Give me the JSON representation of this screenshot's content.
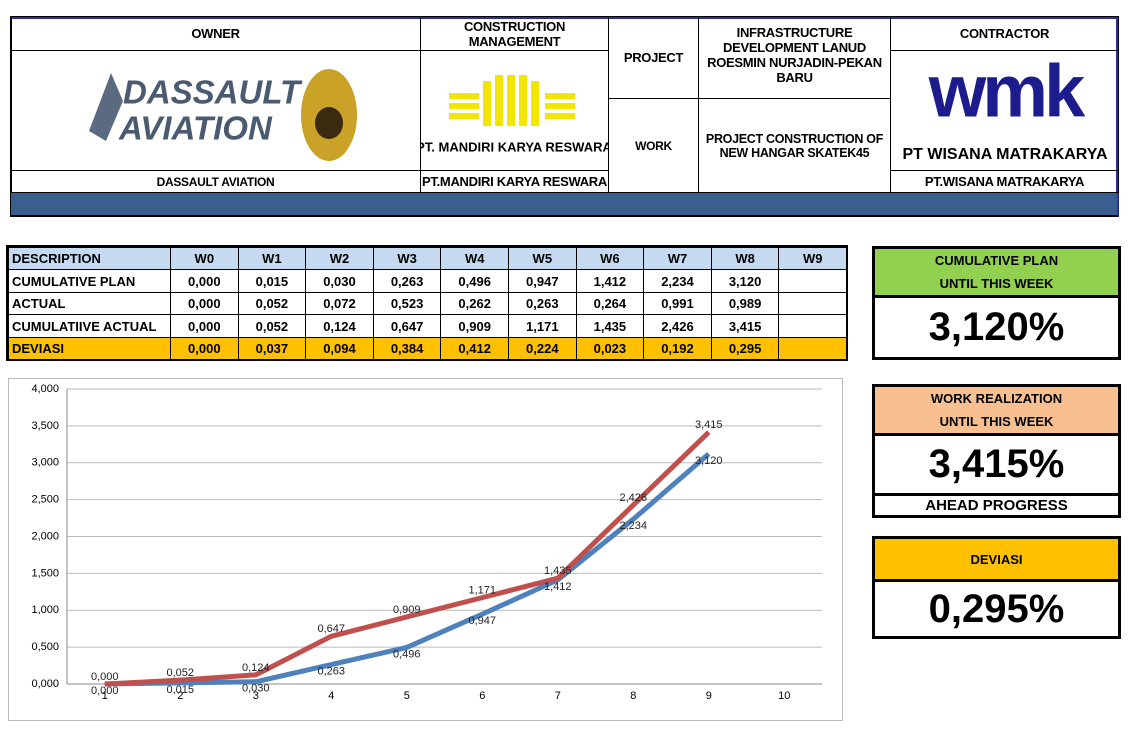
{
  "header": {
    "owner_label": "OWNER",
    "owner_logo": [
      "DASSAULT",
      "AVIATION"
    ],
    "owner_name": "DASSAULT AVIATION",
    "cm_label": "CONSTRUCTION MANAGEMENT",
    "cm_logo": "PT. MANDIRI KARYA RESWARA",
    "cm_name": "PT.MANDIRI KARYA RESWARA",
    "project_label": "PROJECT",
    "project": "INFRASTRUCTURE DEVELOPMENT LANUD ROESMIN NURJADIN-PEKAN BARU",
    "work_label": "WORK",
    "work": "PROJECT CONSTRUCTION OF NEW HANGAR SKATEK45",
    "contractor_label": "CONTRACTOR",
    "contractor_logo": [
      "wmk",
      "PT WISANA MATRAKARYA"
    ],
    "contractor_name": "PT.WISANA MATRAKARYA"
  },
  "table": {
    "columns": [
      "DESCRIPTION",
      "W0",
      "W1",
      "W2",
      "W3",
      "W4",
      "W5",
      "W6",
      "W7",
      "W8",
      "W9"
    ],
    "rows": [
      [
        "CUMULATIVE PLAN",
        "0,000",
        "0,015",
        "0,030",
        "0,263",
        "0,496",
        "0,947",
        "1,412",
        "2,234",
        "3,120"
      ],
      [
        "ACTUAL",
        "0,000",
        "0,052",
        "0,072",
        "0,523",
        "0,262",
        "0,263",
        "0,264",
        "0,991",
        "0,989"
      ],
      [
        "CUMULATIIVE ACTUAL",
        "0,000",
        "0,052",
        "0,124",
        "0,647",
        "0,909",
        "1,171",
        "1,435",
        "2,426",
        "3,415"
      ],
      [
        "DEVIASI",
        "0,000",
        "0,037",
        "0,094",
        "0,384",
        "0,412",
        "0,224",
        "0,023",
        "0,192",
        "0,295"
      ]
    ]
  },
  "boxes": {
    "plan": {
      "title": [
        "CUMULATIVE PLAN",
        "UNTIL THIS WEEK"
      ],
      "value": "3,120%"
    },
    "work": {
      "title": [
        "WORK REALIZATION",
        "UNTIL THIS WEEK"
      ],
      "value": "3,415%",
      "status": "AHEAD PROGRESS"
    },
    "deviasi": {
      "title": [
        "DEVIASI"
      ],
      "value": "0,295%"
    }
  },
  "chart_data": {
    "type": "line",
    "categories": [
      "1",
      "2",
      "3",
      "4",
      "5",
      "6",
      "7",
      "8",
      "9",
      "10"
    ],
    "series": [
      {
        "color": "#4f81bd",
        "values": [
          0,
          0.015,
          0.03,
          0.263,
          0.496,
          0.947,
          1.412,
          2.234,
          3.12,
          null
        ],
        "value_labels": [
          "0,000",
          "0,015",
          "0,030",
          "0,263",
          "0,496",
          "0,947",
          "1,412",
          "2,234",
          "3,120",
          null
        ]
      },
      {
        "color": "#c0504d",
        "values": [
          0,
          0.052,
          0.124,
          0.647,
          0.909,
          1.171,
          1.435,
          2.426,
          3.415,
          null
        ],
        "value_labels": [
          "0,000",
          "0,052",
          "0,124",
          "0,647",
          "0,909",
          "1,171",
          "1,435",
          "2,426",
          "3,415",
          null
        ]
      }
    ],
    "ylim": [
      0,
      4
    ],
    "yticks": [
      {
        "value": 0,
        "label": "0,000"
      },
      {
        "value": 0.5,
        "label": "0,500"
      },
      {
        "value": 1,
        "label": "1,000"
      },
      {
        "value": 1.5,
        "label": "1,500"
      },
      {
        "value": 2,
        "label": "2,000"
      },
      {
        "value": 2.5,
        "label": "2,500"
      },
      {
        "value": 3,
        "label": "3,000"
      },
      {
        "value": 3.5,
        "label": "3,500"
      },
      {
        "value": 4,
        "label": "4,000"
      }
    ],
    "grid": true
  }
}
